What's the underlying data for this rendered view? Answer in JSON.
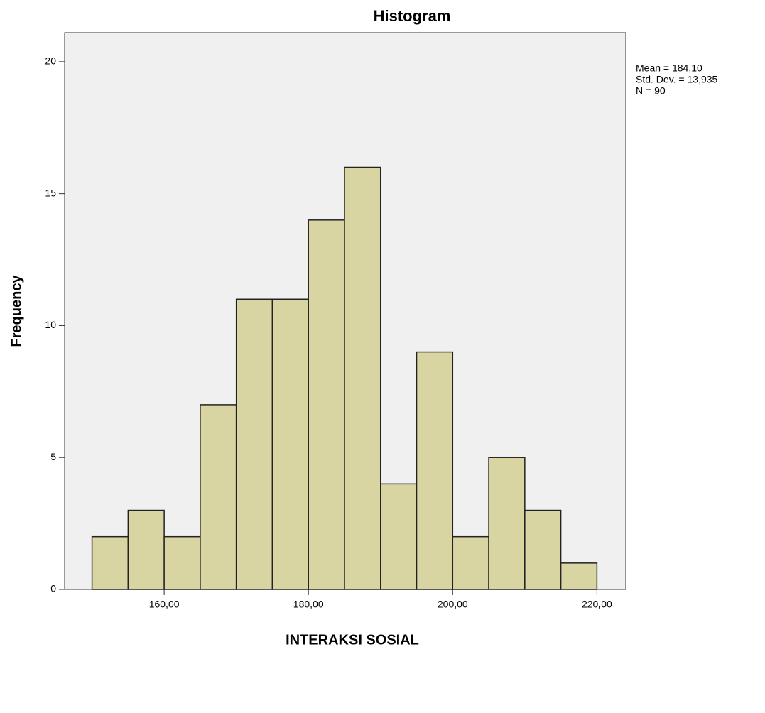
{
  "chart_data": {
    "type": "histogram",
    "title": "Histogram",
    "x_label": "INTERAKSI SOSIAL",
    "y_label": "Frequency",
    "annotations": [
      "Mean = 184,10",
      "Std. Dev. = 13,935",
      "N = 90"
    ],
    "bins": [
      150,
      155,
      160,
      165,
      170,
      175,
      180,
      185,
      190,
      195,
      200,
      205,
      210,
      215,
      220
    ],
    "values": [
      2,
      3,
      2,
      7,
      11,
      11,
      14,
      16,
      4,
      9,
      2,
      5,
      3,
      1
    ],
    "color": "#d9d5a3",
    "xlim": [
      146.2,
      224.0
    ],
    "xticks": [
      {
        "value": 160,
        "label": "160,00"
      },
      {
        "value": 180,
        "label": "180,00"
      },
      {
        "value": 200,
        "label": "200,00"
      },
      {
        "value": 220,
        "label": "220,00"
      }
    ],
    "ylim": [
      0,
      21.1
    ],
    "yticks": [
      0,
      5,
      10,
      15,
      20
    ]
  }
}
